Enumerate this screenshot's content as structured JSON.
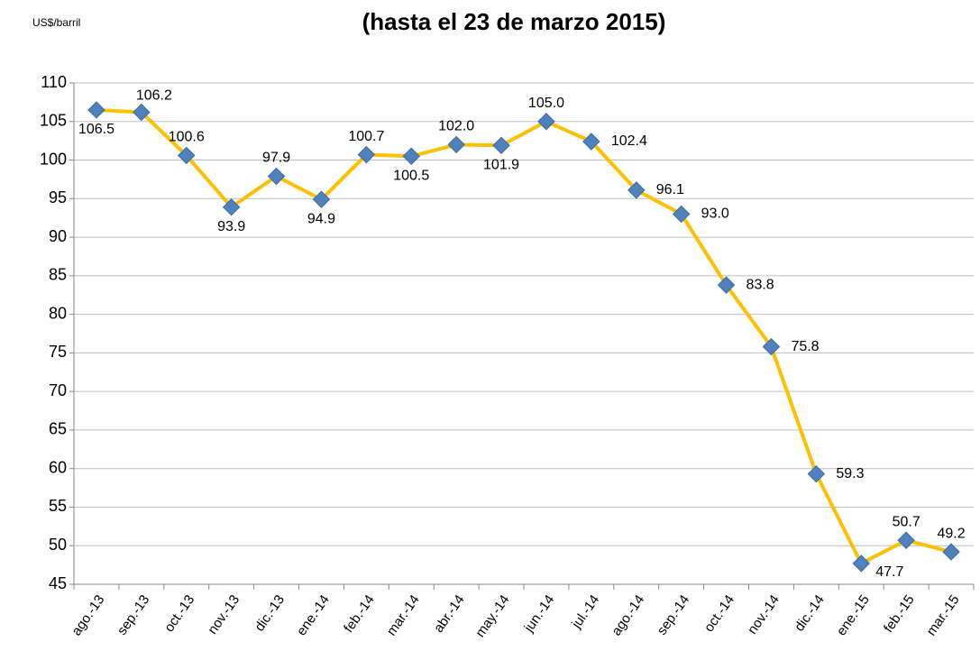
{
  "chart_data": {
    "type": "line",
    "title": "(hasta el 23 de marzo 2015)",
    "y_label": "US$/barril",
    "categories": [
      "ago.-13",
      "sep.-13",
      "oct.-13",
      "nov.-13",
      "dic.-13",
      "ene.-14",
      "feb.-14",
      "mar.-14",
      "abr.-14",
      "may.-14",
      "jun.-14",
      "jul.-14",
      "ago.-14",
      "sep.-14",
      "oct.-14",
      "nov.-14",
      "dic.-14",
      "ene.-15",
      "feb.-15",
      "mar.-15"
    ],
    "values": [
      106.5,
      106.2,
      100.6,
      93.9,
      97.9,
      94.9,
      100.7,
      100.5,
      102.0,
      101.9,
      105.0,
      102.4,
      96.1,
      93.0,
      83.8,
      75.8,
      59.3,
      47.7,
      50.7,
      49.2
    ],
    "value_labels": [
      "106.5",
      "106.2",
      "100.6",
      "93.9",
      "97.9",
      "94.9",
      "100.7",
      "100.5",
      "102.0",
      "101.9",
      "105.0",
      "102.4",
      "96.1",
      "93.0",
      "83.8",
      "75.8",
      "59.3",
      "47.7",
      "50.7",
      "49.2"
    ],
    "color": "#ffc000",
    "marker_color": "#4f81bd",
    "ylim": [
      45,
      110
    ],
    "yticks": [
      45,
      50,
      55,
      60,
      65,
      70,
      75,
      80,
      85,
      90,
      95,
      100,
      105,
      110
    ],
    "grid": true
  }
}
